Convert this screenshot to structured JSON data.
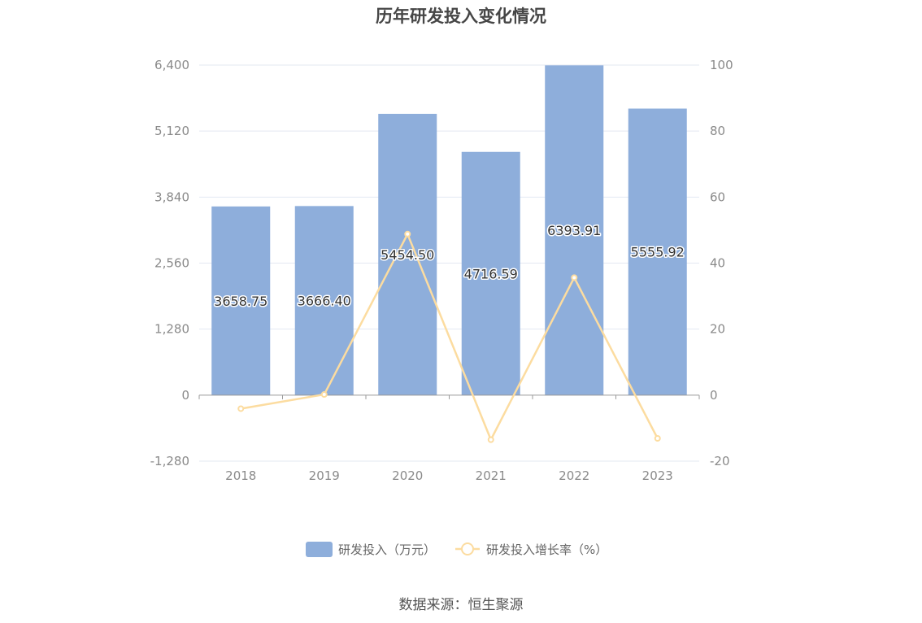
{
  "title": "历年研发投入变化情况",
  "source": "数据来源：恒生聚源",
  "colors": {
    "bar": "#8eaedb",
    "line": "#fcdca0",
    "grid": "#e3e8f2",
    "axis": "#999999",
    "tick_text": "#8a8a8a",
    "label_text": "#333333",
    "legend_text": "#666666"
  },
  "chart_data": {
    "type": "bar",
    "categories": [
      "2018",
      "2019",
      "2020",
      "2021",
      "2022",
      "2023"
    ],
    "series": [
      {
        "name": "研发投入（万元）",
        "type": "bar",
        "axis": "left",
        "values": [
          3658.75,
          3666.4,
          5454.5,
          4716.59,
          6393.91,
          5555.92
        ],
        "labels": [
          "3658.75",
          "3666.40",
          "5454.50",
          "4716.59",
          "6393.91",
          "5555.92"
        ]
      },
      {
        "name": "研发投入增长率（%）",
        "type": "line",
        "axis": "right",
        "values": [
          -4.1,
          0.2,
          48.8,
          -13.5,
          35.6,
          -13.1
        ]
      }
    ],
    "y_left": {
      "min": -1280,
      "max": 6400,
      "ticks": [
        -1280,
        0,
        1280,
        2560,
        3840,
        5120,
        6400
      ],
      "tick_labels": [
        "-1,280",
        "0",
        "1,280",
        "2,560",
        "3,840",
        "5,120",
        "6,400"
      ]
    },
    "y_right": {
      "min": -20,
      "max": 100,
      "ticks": [
        -20,
        0,
        20,
        40,
        60,
        80,
        100
      ],
      "tick_labels": [
        "-20",
        "0",
        "20",
        "40",
        "60",
        "80",
        "100"
      ]
    },
    "grid": true,
    "legend_position": "bottom-center"
  }
}
